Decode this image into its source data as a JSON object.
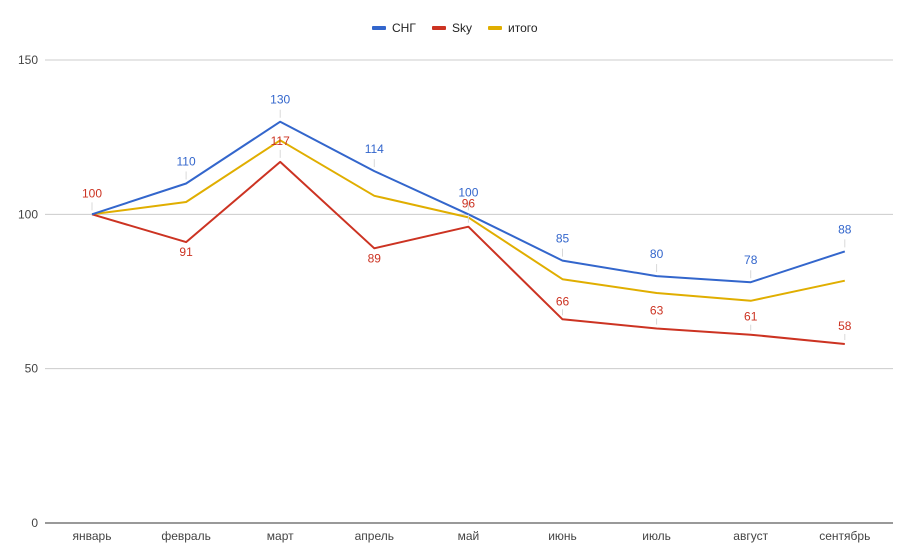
{
  "chart_data": {
    "type": "line",
    "title": "",
    "xlabel": "",
    "ylabel": "",
    "categories": [
      "январь",
      "февраль",
      "март",
      "апрель",
      "май",
      "июнь",
      "июль",
      "август",
      "сентябрь"
    ],
    "ylim": [
      0,
      150
    ],
    "yticks": [
      0,
      50,
      100,
      150
    ],
    "grid": true,
    "legend_position": "top-center",
    "series": [
      {
        "name": "СНГ",
        "color": "#3366cc",
        "values": [
          100,
          110,
          130,
          114,
          100,
          85,
          80,
          78,
          88
        ],
        "labels": [
          "",
          "110",
          "130",
          "114",
          "100",
          "85",
          "80",
          "78",
          "88"
        ]
      },
      {
        "name": "Sky",
        "color": "#cc3322",
        "values": [
          100,
          91,
          117,
          89,
          96,
          66,
          63,
          61,
          58
        ],
        "labels": [
          "100",
          "91",
          "117",
          "89",
          "96",
          "66",
          "63",
          "61",
          "58"
        ]
      },
      {
        "name": "итого",
        "color": "#e0ae00",
        "values": [
          100,
          104,
          124,
          106,
          99,
          79,
          74.5,
          72,
          78.5
        ],
        "labels": [
          "",
          "",
          "",
          "",
          "",
          "",
          "",
          "",
          ""
        ]
      }
    ]
  }
}
